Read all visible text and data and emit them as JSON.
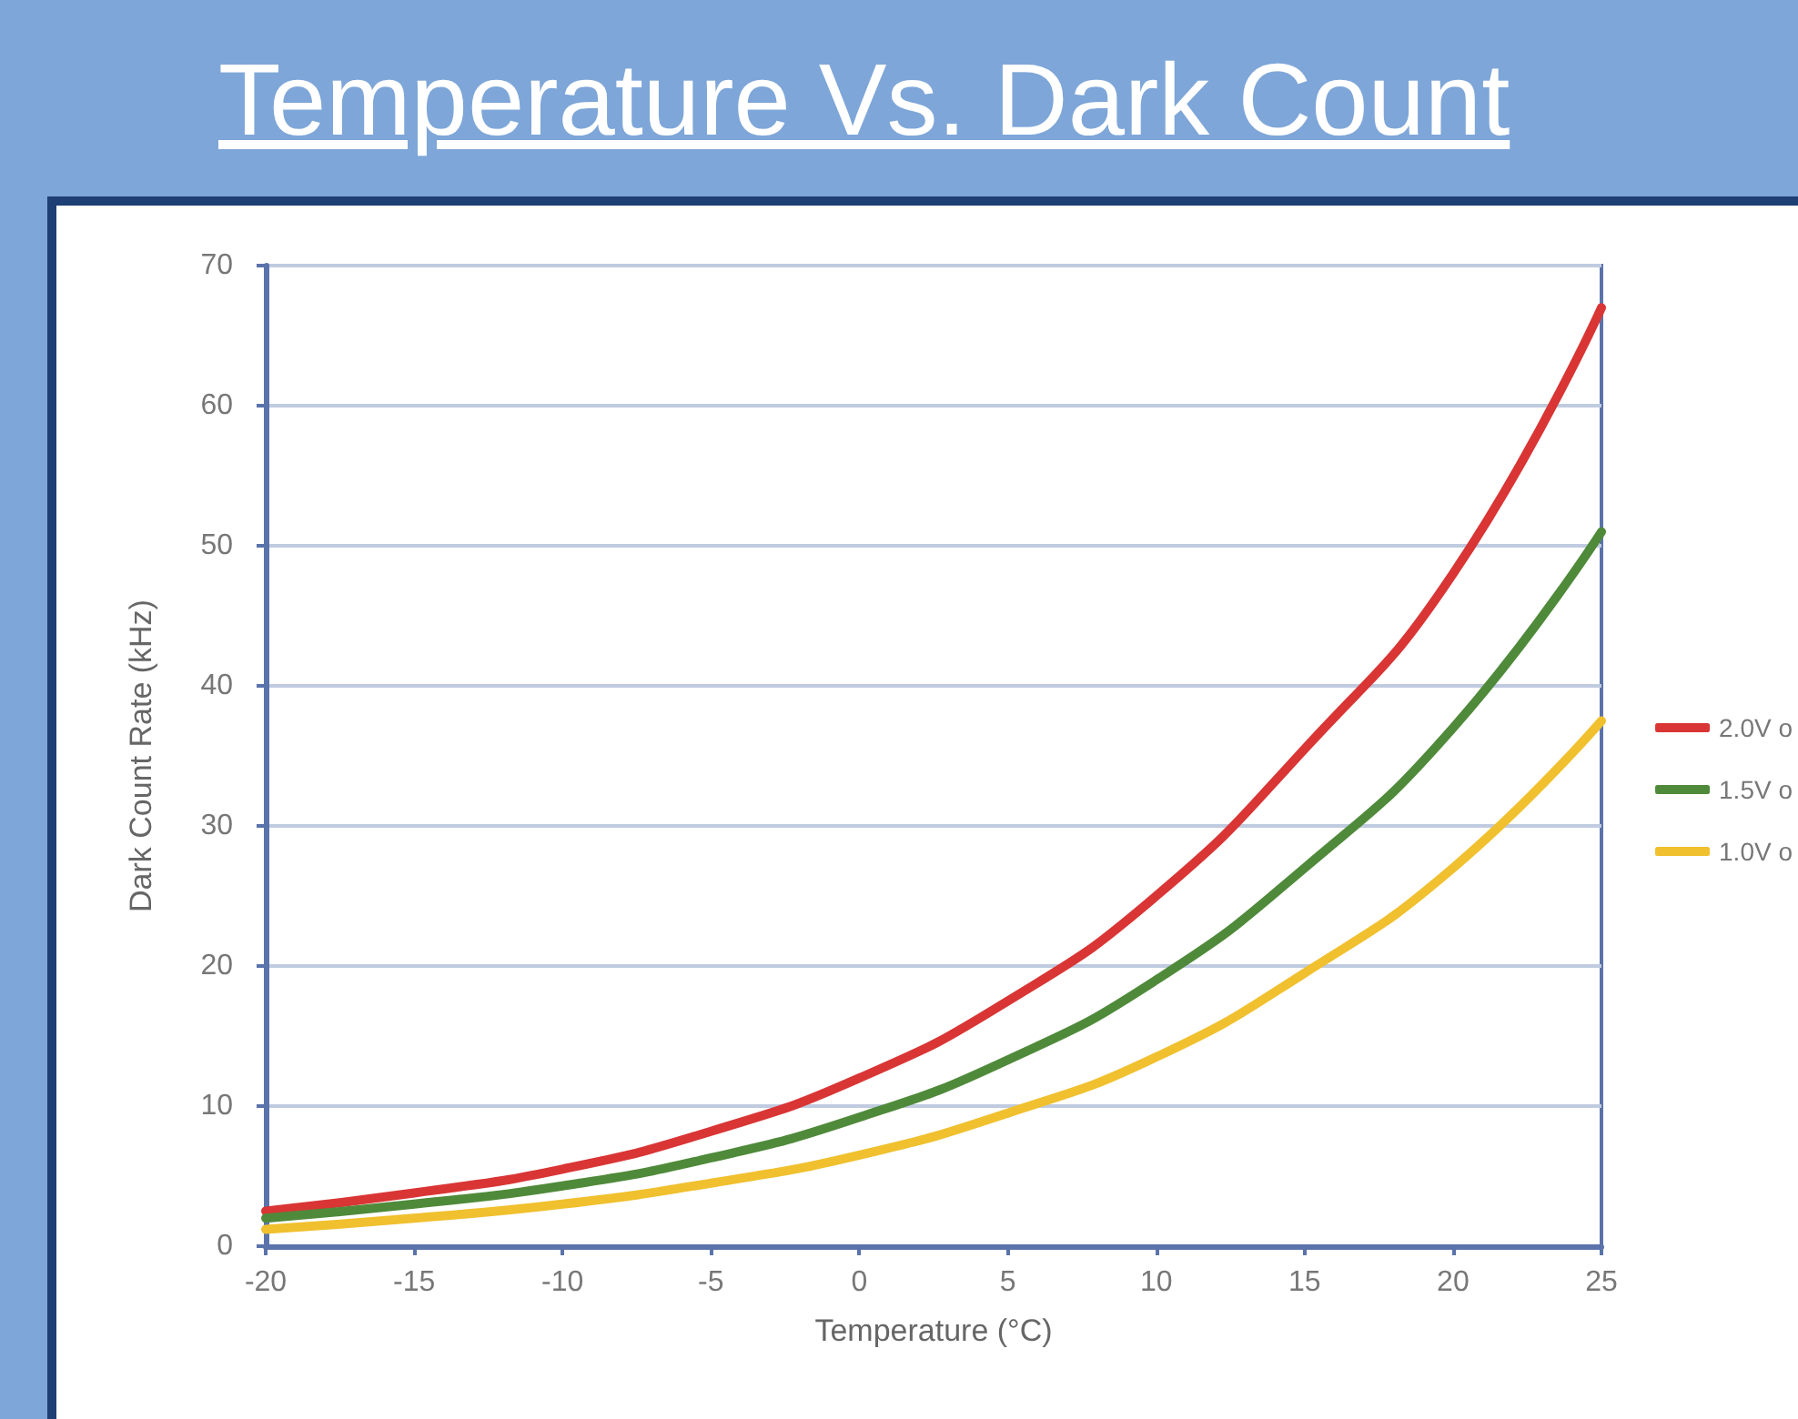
{
  "chart_data": {
    "type": "line",
    "title": "Temperature Vs. Dark Count",
    "xlabel": "Temperature (°C)",
    "ylabel": "Dark Count Rate (kHz)",
    "x": [
      -20,
      -15,
      -10,
      -5,
      0,
      5,
      10,
      15,
      20,
      25
    ],
    "series": [
      {
        "name": "2.0V o",
        "color": "#d93535",
        "values": [
          2.5,
          3.8,
          5.5,
          8.2,
          12,
          17.5,
          25,
          35.5,
          48,
          67
        ]
      },
      {
        "name": "1.5V o",
        "color": "#4f8a3a",
        "values": [
          2,
          3,
          4.3,
          6.3,
          9.2,
          13.3,
          19,
          27,
          37,
          51
        ]
      },
      {
        "name": "1.0V o",
        "color": "#f0c02e",
        "values": [
          1.2,
          2,
          3,
          4.5,
          6.5,
          9.5,
          13.5,
          19.5,
          27,
          37.5
        ]
      }
    ],
    "xlim": [
      -20,
      25
    ],
    "xticks": [
      -20,
      -15,
      -10,
      -5,
      0,
      5,
      10,
      15,
      20,
      25
    ],
    "ylim": [
      0,
      70
    ],
    "yticks": [
      0,
      10,
      20,
      30,
      40,
      50,
      60,
      70
    ],
    "grid": "y",
    "legend": "right",
    "marker": "none",
    "line_style": "solid"
  }
}
